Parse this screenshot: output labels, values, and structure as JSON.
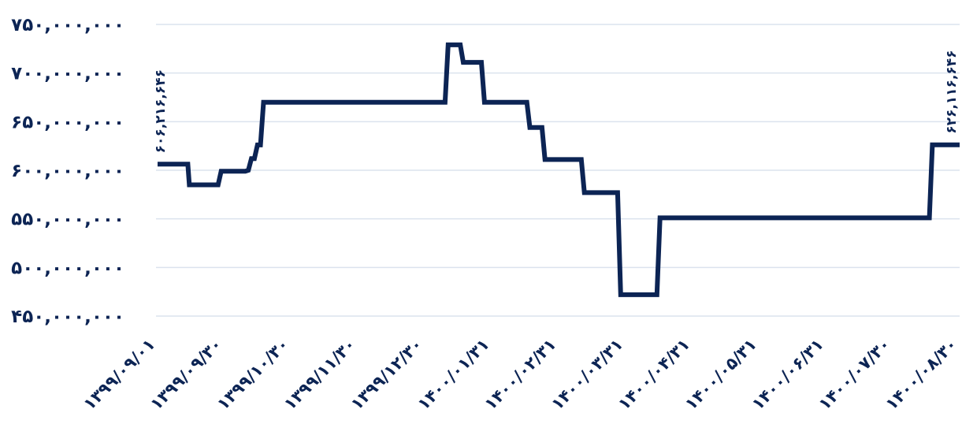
{
  "chart_data": {
    "type": "line",
    "title": "",
    "xlabel": "",
    "ylabel": "",
    "ylim": [
      450000000,
      750000000
    ],
    "y_ticks": [
      "۴۵۰,۰۰۰,۰۰۰",
      "۵۰۰,۰۰۰,۰۰۰",
      "۵۵۰,۰۰۰,۰۰۰",
      "۶۰۰,۰۰۰,۰۰۰",
      "۶۵۰,۰۰۰,۰۰۰",
      "۷۰۰,۰۰۰,۰۰۰",
      "۷۵۰,۰۰۰,۰۰۰"
    ],
    "x_ticks": [
      "۱۳۹۹/۰۹/۰۱",
      "۱۳۹۹/۰۹/۳۰",
      "۱۳۹۹/۱۰/۳۰",
      "۱۳۹۹/۱۱/۳۰",
      "۱۳۹۹/۱۲/۳۰",
      "۱۴۰۰/۰۱/۳۱",
      "۱۴۰۰/۰۲/۳۱",
      "۱۴۰۰/۰۳/۳۱",
      "۱۴۰۰/۰۴/۳۱",
      "۱۴۰۰/۰۵/۳۱",
      "۱۴۰۰/۰۶/۳۱",
      "۱۴۰۰/۰۷/۳۰",
      "۱۴۰۰/۰۸/۳۰"
    ],
    "grid": true,
    "legend": "none",
    "colors": {
      "line": "#0c2454",
      "grid": "#dbe3ee",
      "text": "#0c2454"
    },
    "series": [
      {
        "x": [
          0,
          10,
          10.5,
          20,
          21,
          29,
          30,
          31,
          32,
          33,
          34,
          35,
          95,
          96,
          100,
          101,
          107,
          108,
          122,
          123,
          127,
          128,
          140,
          141,
          152,
          153,
          165,
          166,
          182,
          183,
          190,
          191,
          209,
          210,
          255,
          256,
          265
        ],
        "values": [
          606216646,
          606216646,
          585000000,
          585000000,
          599000000,
          599000000,
          600000000,
          612000000,
          612000000,
          626000000,
          626000000,
          670000000,
          670000000,
          729000000,
          729000000,
          711000000,
          711000000,
          670000000,
          670000000,
          644000000,
          644000000,
          611000000,
          611000000,
          577000000,
          577000000,
          472000000,
          472000000,
          551000000,
          551000000,
          551000000,
          551000000,
          551000000,
          551000000,
          551000000,
          551000000,
          626116646,
          626116646
        ]
      }
    ],
    "annotations": [
      {
        "text": "۶۰۶,۲۱۶,۶۴۶",
        "x": 0,
        "y": 606216646
      },
      {
        "text": "۶۲۶,۱۱۶,۶۴۶",
        "x": 265,
        "y": 626116646
      }
    ]
  }
}
